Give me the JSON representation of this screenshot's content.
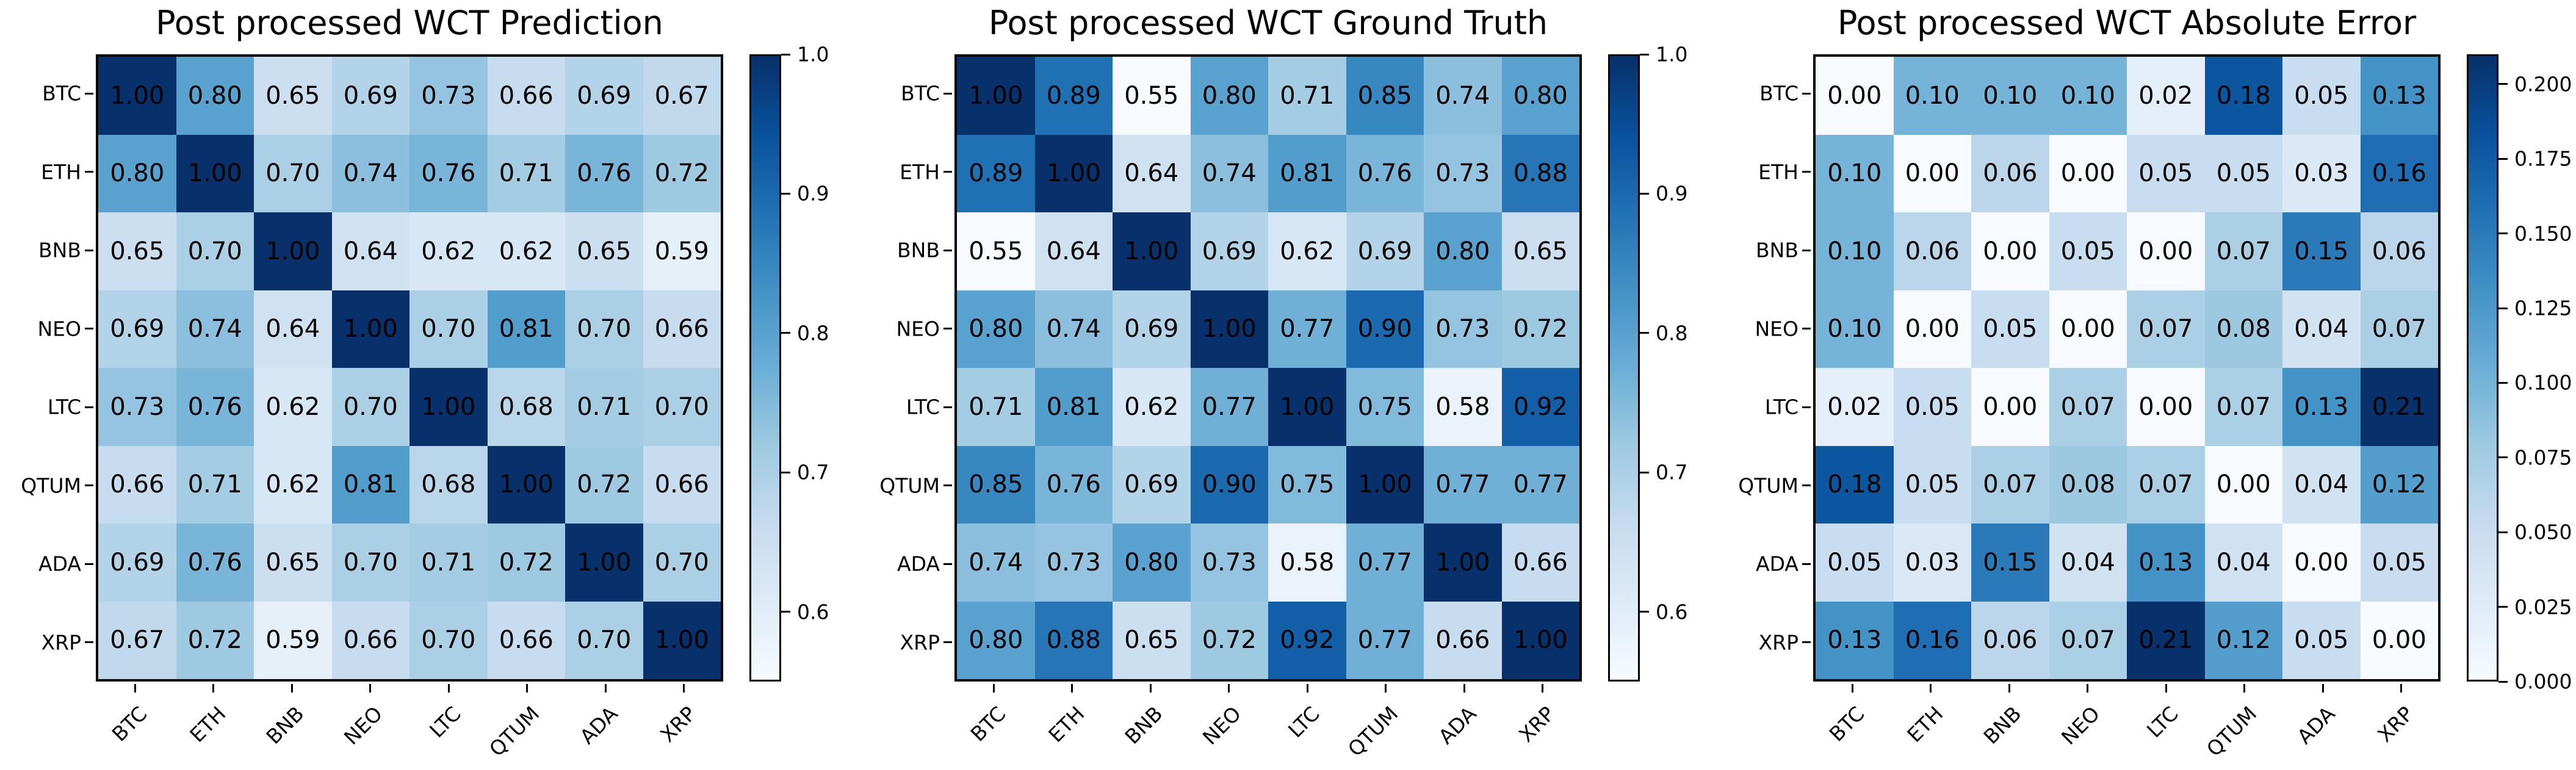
{
  "style": {
    "background": "#ffffff",
    "text_color": "#000000",
    "colormap": "Blues",
    "colormap_stops": [
      "#f7fbff",
      "#deebf7",
      "#c6dbef",
      "#9ecae1",
      "#6baed6",
      "#4292c6",
      "#2171b5",
      "#08519c",
      "#08306b"
    ]
  },
  "chart_data": [
    {
      "type": "heatmap",
      "title": "Post processed WCT Prediction",
      "x_categories": [
        "BTC",
        "ETH",
        "BNB",
        "NEO",
        "LTC",
        "QTUM",
        "ADA",
        "XRP"
      ],
      "y_categories": [
        "BTC",
        "ETH",
        "BNB",
        "NEO",
        "LTC",
        "QTUM",
        "ADA",
        "XRP"
      ],
      "values": [
        [
          1.0,
          0.8,
          0.65,
          0.69,
          0.73,
          0.66,
          0.69,
          0.67
        ],
        [
          0.8,
          1.0,
          0.7,
          0.74,
          0.76,
          0.71,
          0.76,
          0.72
        ],
        [
          0.65,
          0.7,
          1.0,
          0.64,
          0.62,
          0.62,
          0.65,
          0.59
        ],
        [
          0.69,
          0.74,
          0.64,
          1.0,
          0.7,
          0.81,
          0.7,
          0.66
        ],
        [
          0.73,
          0.76,
          0.62,
          0.7,
          1.0,
          0.68,
          0.71,
          0.7
        ],
        [
          0.66,
          0.71,
          0.62,
          0.81,
          0.68,
          1.0,
          0.72,
          0.66
        ],
        [
          0.69,
          0.76,
          0.65,
          0.7,
          0.71,
          0.72,
          1.0,
          0.7
        ],
        [
          0.67,
          0.72,
          0.59,
          0.66,
          0.7,
          0.66,
          0.7,
          1.0
        ]
      ],
      "vmin": 0.55,
      "vmax": 1.0,
      "annotation_decimals": 2,
      "grid": false,
      "colorbar": {
        "position": "right",
        "ticks": [
          {
            "label": "1.0",
            "value": 1.0
          },
          {
            "label": "0.9",
            "value": 0.9
          },
          {
            "label": "0.8",
            "value": 0.8
          },
          {
            "label": "0.7",
            "value": 0.7
          },
          {
            "label": "0.6",
            "value": 0.6
          }
        ]
      }
    },
    {
      "type": "heatmap",
      "title": "Post processed WCT Ground Truth",
      "x_categories": [
        "BTC",
        "ETH",
        "BNB",
        "NEO",
        "LTC",
        "QTUM",
        "ADA",
        "XRP"
      ],
      "y_categories": [
        "BTC",
        "ETH",
        "BNB",
        "NEO",
        "LTC",
        "QTUM",
        "ADA",
        "XRP"
      ],
      "values": [
        [
          1.0,
          0.89,
          0.55,
          0.8,
          0.71,
          0.85,
          0.74,
          0.8
        ],
        [
          0.89,
          1.0,
          0.64,
          0.74,
          0.81,
          0.76,
          0.73,
          0.88
        ],
        [
          0.55,
          0.64,
          1.0,
          0.69,
          0.62,
          0.69,
          0.8,
          0.65
        ],
        [
          0.8,
          0.74,
          0.69,
          1.0,
          0.77,
          0.9,
          0.73,
          0.72
        ],
        [
          0.71,
          0.81,
          0.62,
          0.77,
          1.0,
          0.75,
          0.58,
          0.92
        ],
        [
          0.85,
          0.76,
          0.69,
          0.9,
          0.75,
          1.0,
          0.77,
          0.77
        ],
        [
          0.74,
          0.73,
          0.8,
          0.73,
          0.58,
          0.77,
          1.0,
          0.66
        ],
        [
          0.8,
          0.88,
          0.65,
          0.72,
          0.92,
          0.77,
          0.66,
          1.0
        ]
      ],
      "vmin": 0.55,
      "vmax": 1.0,
      "annotation_decimals": 2,
      "grid": false,
      "colorbar": {
        "position": "right",
        "ticks": [
          {
            "label": "1.0",
            "value": 1.0
          },
          {
            "label": "0.9",
            "value": 0.9
          },
          {
            "label": "0.8",
            "value": 0.8
          },
          {
            "label": "0.7",
            "value": 0.7
          },
          {
            "label": "0.6",
            "value": 0.6
          }
        ]
      }
    },
    {
      "type": "heatmap",
      "title": "Post processed WCT Absolute Error",
      "x_categories": [
        "BTC",
        "ETH",
        "BNB",
        "NEO",
        "LTC",
        "QTUM",
        "ADA",
        "XRP"
      ],
      "y_categories": [
        "BTC",
        "ETH",
        "BNB",
        "NEO",
        "LTC",
        "QTUM",
        "ADA",
        "XRP"
      ],
      "values": [
        [
          0.0,
          0.1,
          0.1,
          0.1,
          0.02,
          0.18,
          0.05,
          0.13
        ],
        [
          0.1,
          0.0,
          0.06,
          0.0,
          0.05,
          0.05,
          0.03,
          0.16
        ],
        [
          0.1,
          0.06,
          0.0,
          0.05,
          0.0,
          0.07,
          0.15,
          0.06
        ],
        [
          0.1,
          0.0,
          0.05,
          0.0,
          0.07,
          0.08,
          0.04,
          0.07
        ],
        [
          0.02,
          0.05,
          0.0,
          0.07,
          0.0,
          0.07,
          0.13,
          0.21
        ],
        [
          0.18,
          0.05,
          0.07,
          0.08,
          0.07,
          0.0,
          0.04,
          0.12
        ],
        [
          0.05,
          0.03,
          0.15,
          0.04,
          0.13,
          0.04,
          0.0,
          0.05
        ],
        [
          0.13,
          0.16,
          0.06,
          0.07,
          0.21,
          0.12,
          0.05,
          0.0
        ]
      ],
      "vmin": 0.0,
      "vmax": 0.21,
      "annotation_decimals": 2,
      "grid": false,
      "colorbar": {
        "position": "right",
        "ticks": [
          {
            "label": "0.200",
            "value": 0.2
          },
          {
            "label": "0.175",
            "value": 0.175
          },
          {
            "label": "0.150",
            "value": 0.15
          },
          {
            "label": "0.125",
            "value": 0.125
          },
          {
            "label": "0.100",
            "value": 0.1
          },
          {
            "label": "0.075",
            "value": 0.075
          },
          {
            "label": "0.050",
            "value": 0.05
          },
          {
            "label": "0.025",
            "value": 0.025
          },
          {
            "label": "0.000",
            "value": 0.0
          }
        ]
      }
    }
  ]
}
